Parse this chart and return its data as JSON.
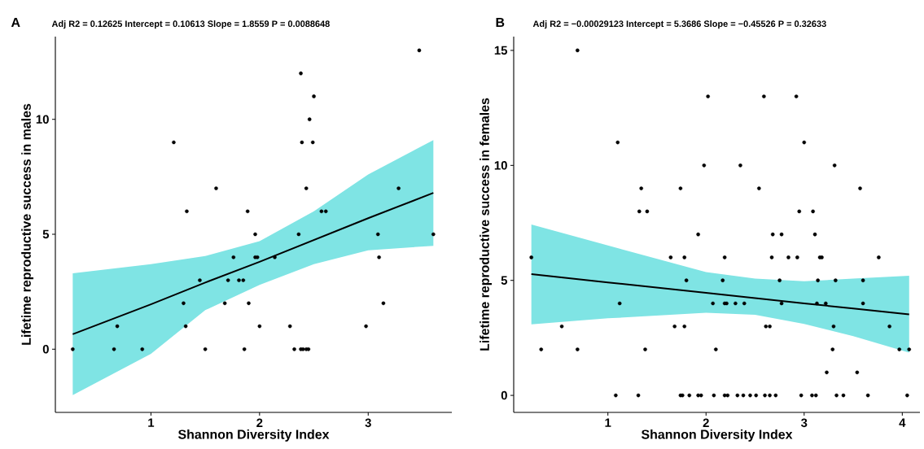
{
  "chart_data": [
    {
      "type": "scatter",
      "title": "A",
      "subtitle": "Adj R2 =  0.12625 Intercept = 0.10613  Slope = 1.8559  P = 0.0088648",
      "xlabel": "Shannon Diversity Index",
      "ylabel": "Lifetime reproductive success in males",
      "xlim": [
        0.12,
        3.77
      ],
      "ylim": [
        -2.75,
        13.6
      ],
      "xticks": [
        1,
        2,
        3
      ],
      "yticks": [
        0,
        5,
        10
      ],
      "grid": false,
      "series": [
        {
          "type": "line",
          "marker": "none",
          "color": "#000000",
          "x": [
            0.28,
            1,
            1.5,
            2,
            2.5,
            3,
            3.6
          ],
          "values": [
            0.65,
            1.95,
            2.9,
            3.8,
            4.75,
            5.7,
            6.8
          ],
          "lower": [
            -2.0,
            -0.2,
            1.7,
            2.8,
            3.7,
            4.3,
            4.5
          ],
          "upper": [
            3.3,
            3.7,
            4.05,
            4.7,
            6.0,
            7.6,
            9.1
          ]
        },
        {
          "type": "scatter",
          "marker": "circle",
          "color": "#000000",
          "x": [
            0.28,
            0.66,
            0.69,
            0.92,
            1.21,
            1.3,
            1.32,
            1.33,
            1.45,
            1.5,
            1.6,
            1.68,
            1.71,
            1.76,
            1.81,
            1.85,
            1.86,
            1.89,
            1.9,
            1.96,
            1.96,
            1.98,
            2.0,
            2.14,
            2.28,
            2.32,
            2.36,
            2.38,
            2.38,
            2.39,
            2.4,
            2.43,
            2.43,
            2.45,
            2.46,
            2.49,
            2.5,
            2.57,
            2.61,
            2.98,
            3.09,
            3.1,
            3.14,
            3.28,
            3.47,
            3.6
          ],
          "values": [
            0,
            0,
            1,
            0,
            9,
            2,
            1,
            6,
            3,
            0,
            7,
            2,
            3,
            4,
            3,
            3,
            0,
            6,
            2,
            5,
            4,
            4,
            1,
            4,
            1,
            0,
            5,
            12,
            0,
            9,
            0,
            7,
            0,
            0,
            10,
            9,
            11,
            6,
            6,
            1,
            5,
            4,
            2,
            7,
            13,
            5
          ]
        }
      ]
    },
    {
      "type": "scatter",
      "title": "B",
      "subtitle": "Adj R2 =  −0.00029123 Intercept = 5.3686  Slope = −0.45526  P = 0.32633",
      "xlabel": "Shannon Diversity Index",
      "ylabel": "Lifetime reproductive success in females",
      "xlim": [
        0.04,
        4.18
      ],
      "ylim": [
        -0.74,
        15.6
      ],
      "xticks": [
        1,
        2,
        3,
        4
      ],
      "yticks": [
        0,
        5,
        10,
        15
      ],
      "grid": false,
      "series": [
        {
          "type": "line",
          "marker": "none",
          "color": "#000000",
          "x": [
            0.22,
            1,
            2,
            2.5,
            3,
            3.5,
            4.07
          ],
          "values": [
            5.27,
            4.91,
            4.46,
            4.23,
            4.0,
            3.78,
            3.52
          ],
          "lower": [
            3.09,
            3.35,
            3.59,
            3.5,
            3.11,
            2.58,
            1.86
          ],
          "upper": [
            7.43,
            6.52,
            5.36,
            5.08,
            4.96,
            5.08,
            5.2
          ]
        },
        {
          "type": "scatter",
          "marker": "circle",
          "color": "#000000",
          "x": [
            0.22,
            0.32,
            0.53,
            0.69,
            0.69,
            1.08,
            1.1,
            1.12,
            1.31,
            1.32,
            1.34,
            1.38,
            1.4,
            1.64,
            1.68,
            1.74,
            1.74,
            1.76,
            1.78,
            1.78,
            1.8,
            1.83,
            1.92,
            1.92,
            1.95,
            1.98,
            2.02,
            2.07,
            2.08,
            2.1,
            2.17,
            2.19,
            2.19,
            2.19,
            2.21,
            2.22,
            2.3,
            2.32,
            2.35,
            2.38,
            2.39,
            2.45,
            2.51,
            2.54,
            2.59,
            2.6,
            2.61,
            2.65,
            2.65,
            2.67,
            2.68,
            2.71,
            2.75,
            2.77,
            2.77,
            2.84,
            2.92,
            2.93,
            2.95,
            2.97,
            3.0,
            3.08,
            3.09,
            3.11,
            3.12,
            3.13,
            3.14,
            3.16,
            3.18,
            3.22,
            3.23,
            3.29,
            3.3,
            3.31,
            3.32,
            3.33,
            3.4,
            3.54,
            3.57,
            3.6,
            3.6,
            3.65,
            3.76,
            3.87,
            3.97,
            4.05,
            4.07
          ],
          "values": [
            6,
            2,
            3,
            15,
            2,
            0,
            11,
            4,
            0,
            8,
            9,
            2,
            8,
            6,
            3,
            9,
            0,
            0,
            6,
            3,
            5,
            0,
            7,
            0,
            0,
            10,
            13,
            4,
            0,
            2,
            5,
            0,
            4,
            6,
            4,
            0,
            4,
            0,
            10,
            0,
            4,
            0,
            0,
            9,
            13,
            0,
            3,
            0,
            3,
            6,
            7,
            0,
            5,
            7,
            4,
            6,
            13,
            6,
            8,
            0,
            11,
            0,
            8,
            7,
            0,
            4,
            5,
            6,
            6,
            4,
            1,
            2,
            3,
            10,
            5,
            0,
            0,
            1,
            9,
            5,
            4,
            0,
            6,
            3,
            2,
            0,
            2
          ]
        }
      ]
    }
  ]
}
